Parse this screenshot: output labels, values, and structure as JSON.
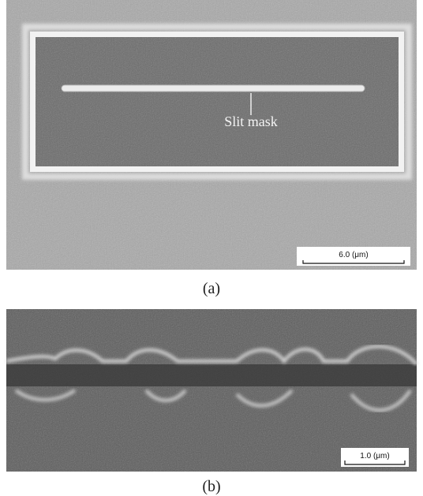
{
  "panel_a": {
    "annotation": "Slit mask",
    "scale_bar": "6.0 (μm)",
    "caption": "(a)"
  },
  "panel_b": {
    "scale_bar": "1.0 (μm)",
    "caption": "(b)"
  }
}
